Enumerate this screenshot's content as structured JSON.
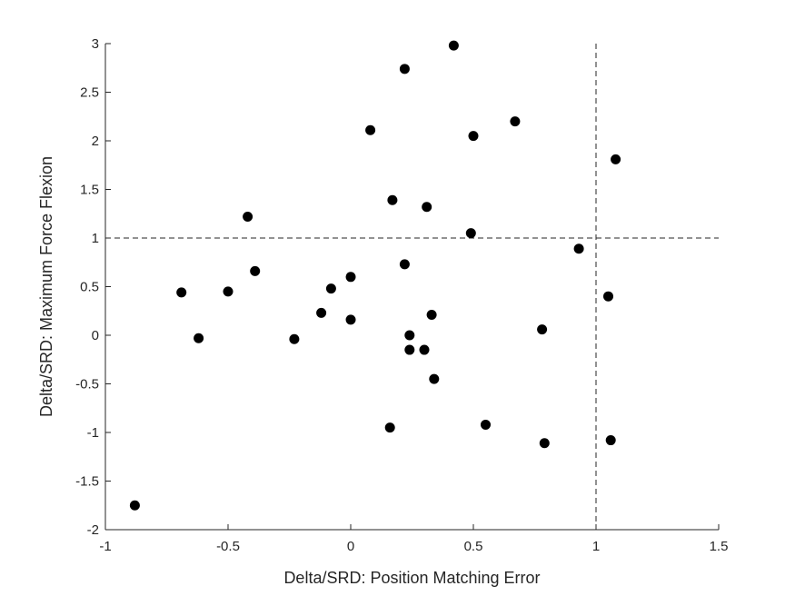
{
  "chart_data": {
    "type": "scatter",
    "title": "",
    "xlabel": "Delta/SRD: Position Matching Error",
    "ylabel": "Delta/SRD: Maximum Force Flexion",
    "xlim": [
      -1,
      1.5
    ],
    "ylim": [
      -2,
      3
    ],
    "xticks": [
      -1,
      -0.5,
      0,
      0.5,
      1,
      1.5
    ],
    "yticks": [
      -2,
      -1.5,
      -1,
      -0.5,
      0,
      0.5,
      1,
      1.5,
      2,
      2.5,
      3
    ],
    "xtick_labels": [
      "-1",
      "-0.5",
      "0",
      "0.5",
      "1",
      "1.5"
    ],
    "ytick_labels": [
      "-2",
      "-1.5",
      "-1",
      "-0.5",
      "0",
      "0.5",
      "1",
      "1.5",
      "2",
      "2.5",
      "3"
    ],
    "grid": false,
    "reference_lines": [
      {
        "orientation": "vertical",
        "value": 1,
        "style": "dashed"
      },
      {
        "orientation": "horizontal",
        "value": 1,
        "style": "dashed"
      }
    ],
    "marker_color": "#000000",
    "points": [
      {
        "x": 0.42,
        "y": 2.98
      },
      {
        "x": 0.22,
        "y": 2.74
      },
      {
        "x": 0.67,
        "y": 2.2
      },
      {
        "x": 0.08,
        "y": 2.11
      },
      {
        "x": 0.5,
        "y": 2.05
      },
      {
        "x": 1.08,
        "y": 1.81
      },
      {
        "x": 0.17,
        "y": 1.39
      },
      {
        "x": 0.31,
        "y": 1.32
      },
      {
        "x": -0.42,
        "y": 1.22
      },
      {
        "x": 0.49,
        "y": 1.05
      },
      {
        "x": 0.93,
        "y": 0.89
      },
      {
        "x": 0.22,
        "y": 0.73
      },
      {
        "x": -0.39,
        "y": 0.66
      },
      {
        "x": 0.0,
        "y": 0.6
      },
      {
        "x": -0.08,
        "y": 0.48
      },
      {
        "x": -0.69,
        "y": 0.44
      },
      {
        "x": -0.5,
        "y": 0.45
      },
      {
        "x": 1.05,
        "y": 0.4
      },
      {
        "x": -0.12,
        "y": 0.23
      },
      {
        "x": 0.33,
        "y": 0.21
      },
      {
        "x": 0.0,
        "y": 0.16
      },
      {
        "x": 0.78,
        "y": 0.06
      },
      {
        "x": 0.24,
        "y": 0.0
      },
      {
        "x": -0.62,
        "y": -0.03
      },
      {
        "x": -0.23,
        "y": -0.04
      },
      {
        "x": 0.24,
        "y": -0.15
      },
      {
        "x": 0.3,
        "y": -0.15
      },
      {
        "x": 0.34,
        "y": -0.45
      },
      {
        "x": 0.55,
        "y": -0.92
      },
      {
        "x": 0.16,
        "y": -0.95
      },
      {
        "x": 1.06,
        "y": -1.08
      },
      {
        "x": 0.79,
        "y": -1.11
      },
      {
        "x": -0.88,
        "y": -1.75
      }
    ]
  }
}
